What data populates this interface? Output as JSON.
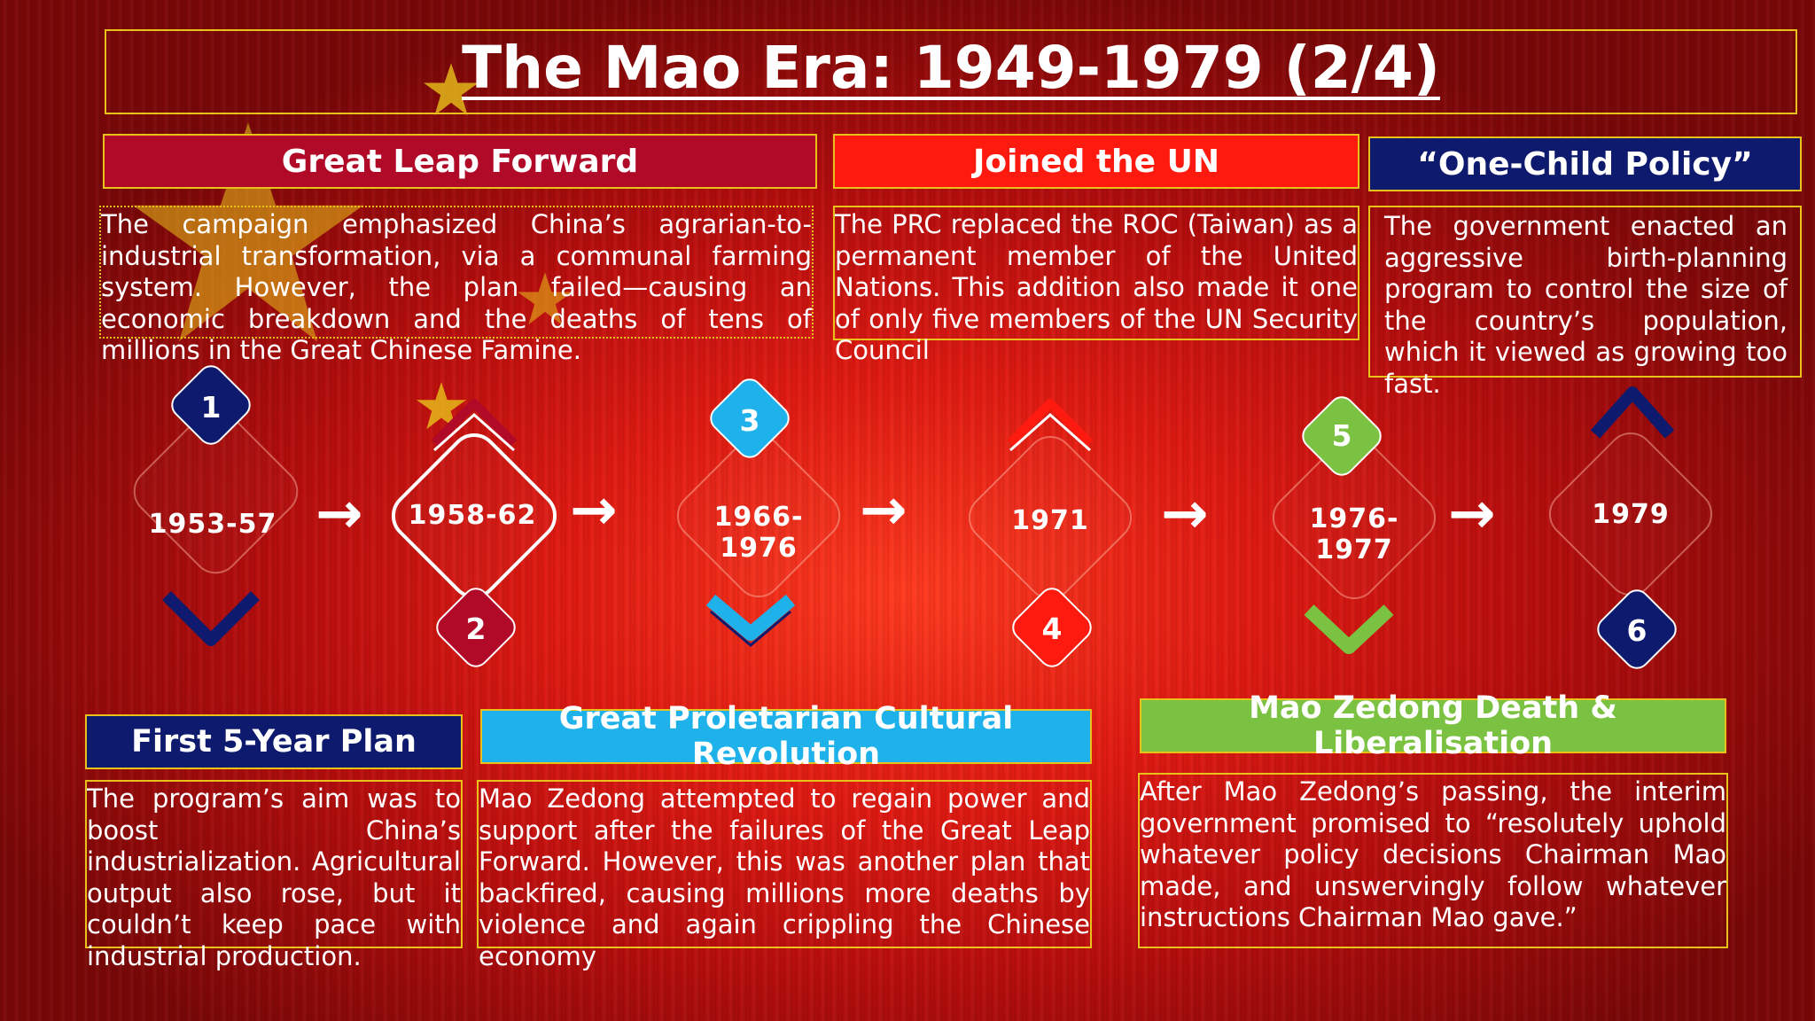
{
  "title": "The Mao Era: 1949-1979 (2/4)",
  "colors": {
    "gold": "#e8c21a",
    "navy": "#0e1a6e",
    "crimson": "#b10a28",
    "cyan": "#1fb2ea",
    "red": "#ff1a10",
    "green": "#7cc242"
  },
  "top_events": [
    {
      "heading": "Great Leap Forward",
      "text": "The campaign emphasized China’s agrarian-to-industrial transformation, via a communal farming system. However, the plan failed—causing an economic breakdown and the deaths of tens of millions in the Great Chinese Famine."
    },
    {
      "heading": "Joined the UN",
      "text": "The PRC replaced the ROC (Taiwan) as a permanent member of the United Nations. This addition also made it one of only five members of the UN Security Council"
    },
    {
      "heading": "“One-Child Policy”",
      "text": "The government enacted an aggressive birth-planning program to control the size of the country’s population, which it viewed as growing too fast."
    }
  ],
  "bottom_events": [
    {
      "heading": "First 5-Year Plan",
      "text": "The program’s aim was to boost China’s industrialization. Agricultural output also rose, but it couldn’t keep pace with industrial production."
    },
    {
      "heading": "Great Proletarian Cultural Revolution",
      "text": "Mao Zedong attempted to regain power and support after the failures of the Great Leap Forward. However, this was another plan that backfired, causing millions more deaths by violence and again crippling the Chinese economy"
    },
    {
      "heading": "Mao Zedong Death & Liberalisation",
      "text": "After Mao Zedong’s passing, the interim government promised to “resolutely uphold whatever policy decisions Chairman Mao made, and unswervingly follow whatever instructions Chairman Mao gave.”"
    }
  ],
  "timeline": [
    {
      "number": "1",
      "years": "1953-57"
    },
    {
      "number": "2",
      "years": "1958-62"
    },
    {
      "number": "3",
      "years": "1966-1976"
    },
    {
      "number": "4",
      "years": "1971"
    },
    {
      "number": "5",
      "years": "1976-1977"
    },
    {
      "number": "6",
      "years": "1979"
    }
  ],
  "arrow_glyph": "→"
}
